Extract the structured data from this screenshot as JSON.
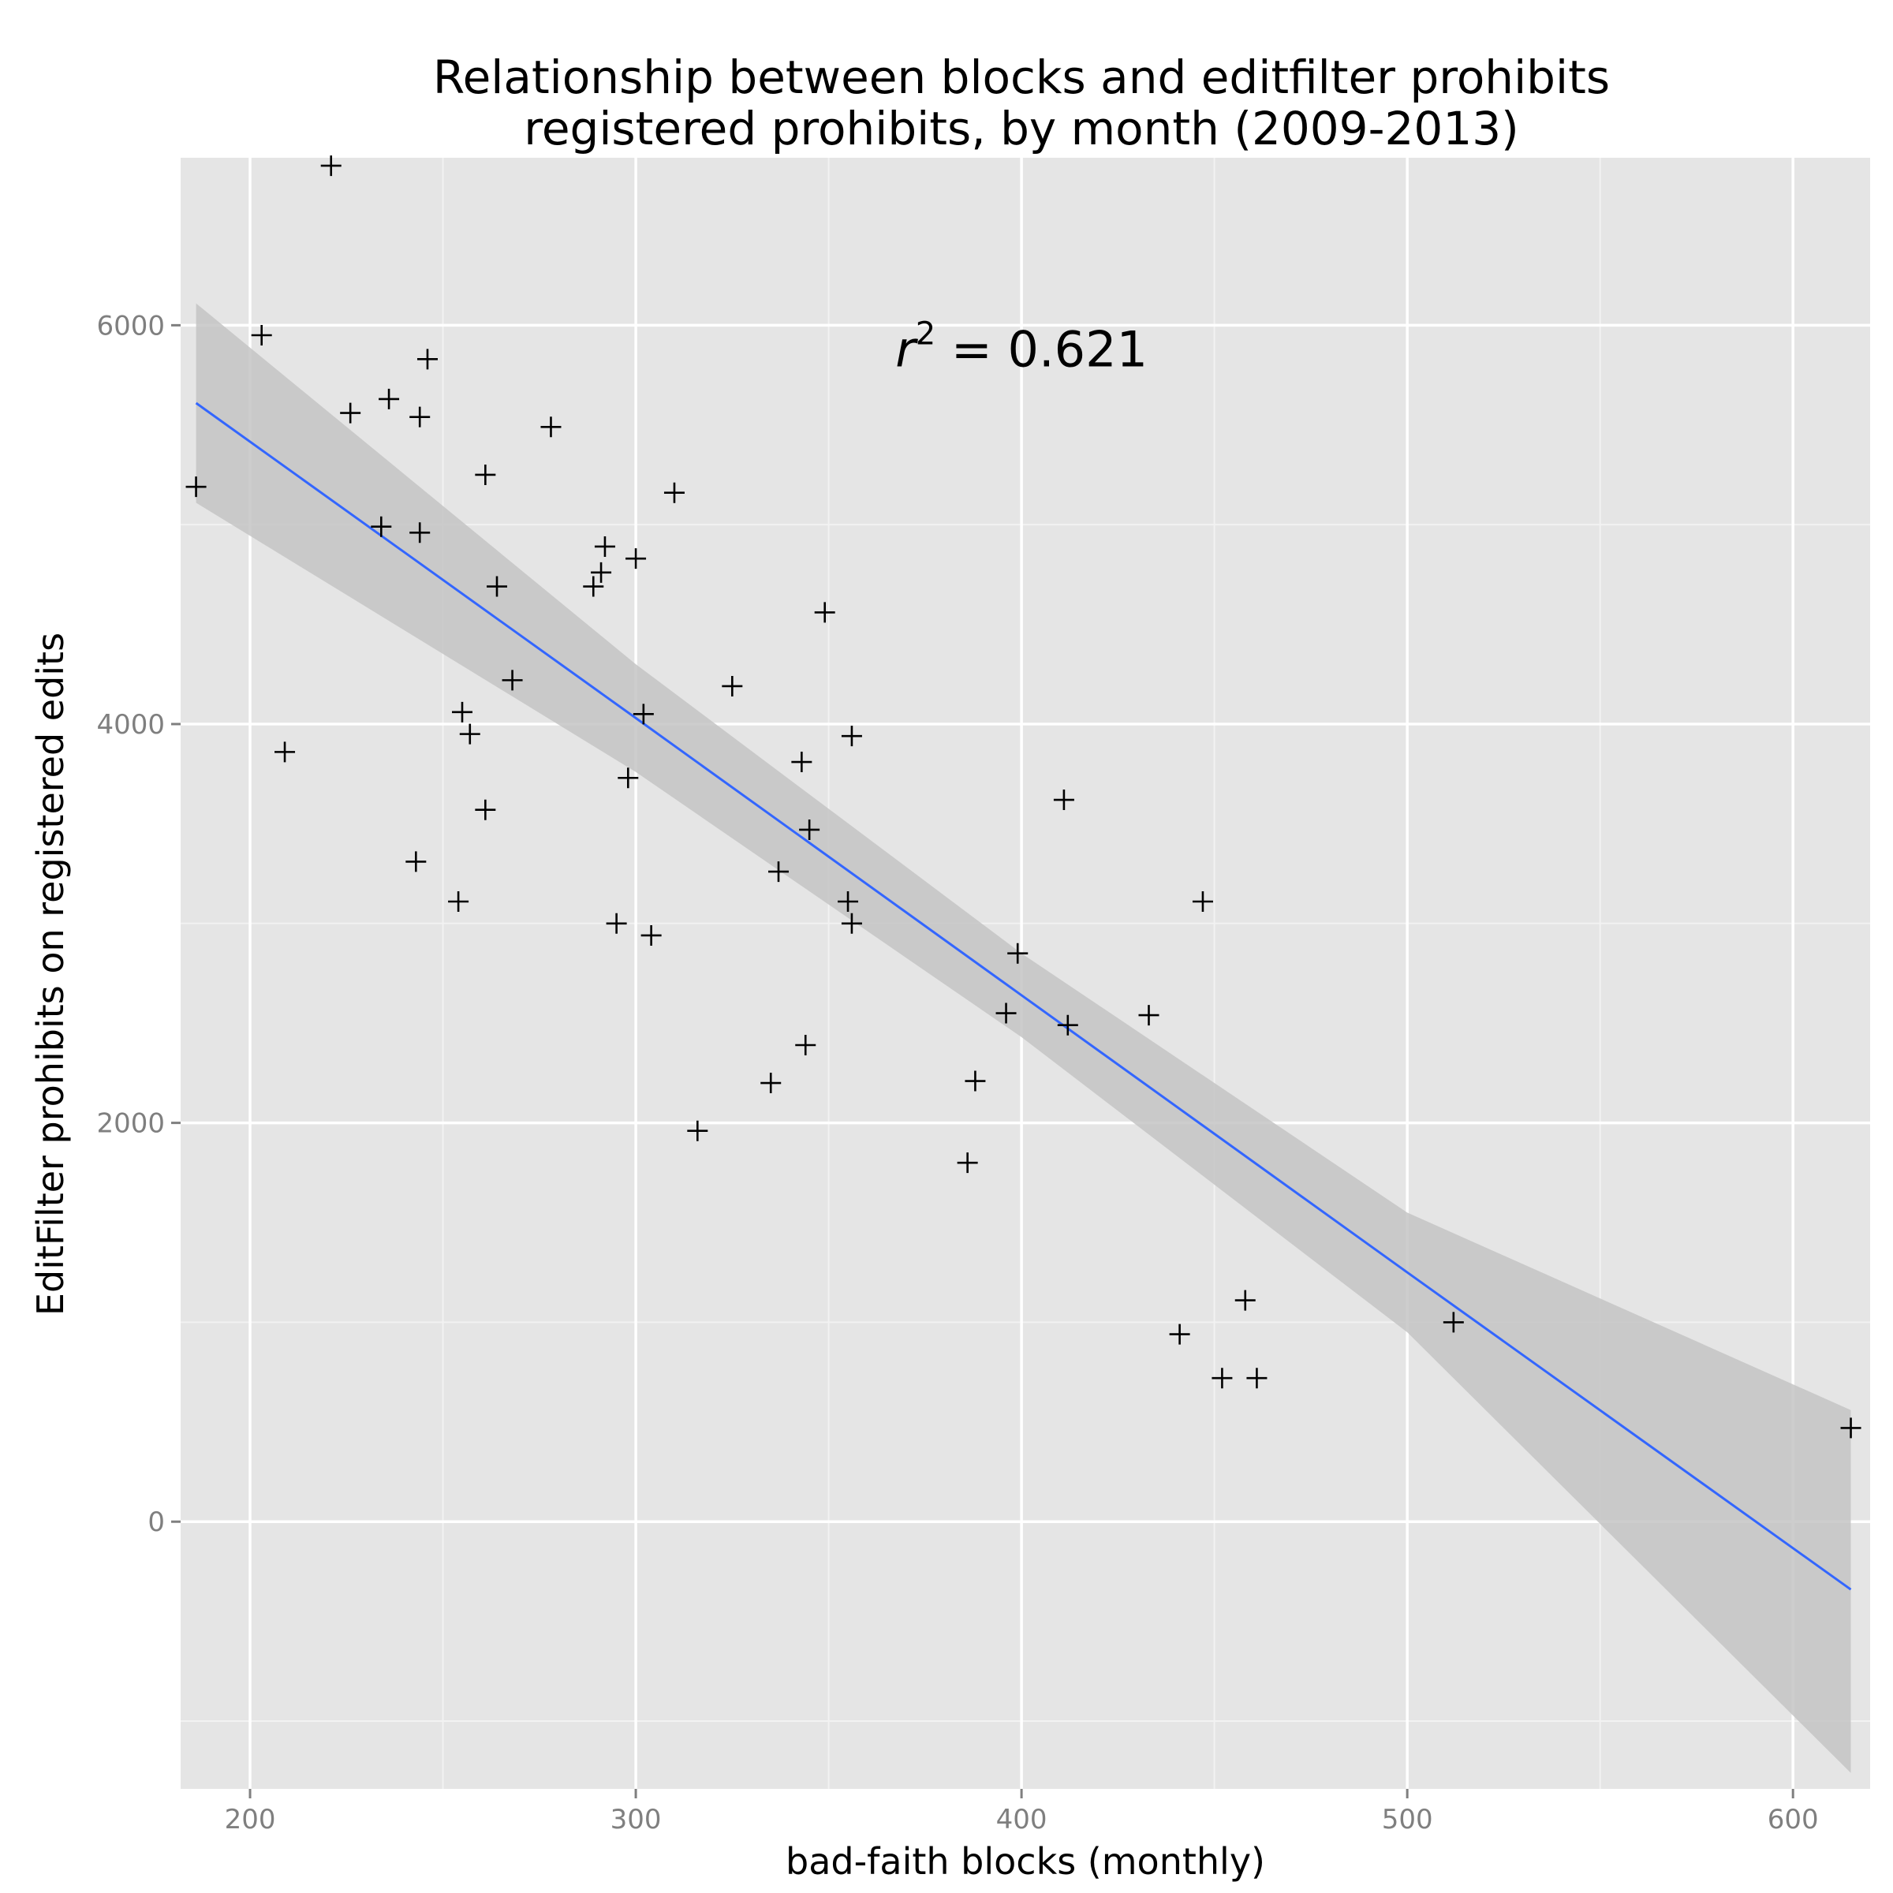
{
  "chart_data": {
    "type": "scatter",
    "title_lines": [
      "Relationship between blocks and editfilter prohibits",
      "registered prohibits, by month (2009-2013)"
    ],
    "xlabel": "bad-faith blocks (monthly)",
    "ylabel": "EditFilter prohibits on registered edits",
    "xlim": [
      182,
      620
    ],
    "ylim": [
      -1340,
      6840
    ],
    "x_ticks": [
      200,
      300,
      400,
      500,
      600
    ],
    "y_ticks": [
      0,
      2000,
      4000,
      6000
    ],
    "x_tick_labels": [
      "200",
      "300",
      "400",
      "500",
      "600"
    ],
    "y_tick_labels": [
      "0",
      "2000",
      "4000",
      "6000"
    ],
    "x_minor": [
      250,
      350,
      450,
      550
    ],
    "y_minor": [
      -1000,
      1000,
      3000,
      5000
    ],
    "grid": true,
    "annotation": {
      "prefix": "r",
      "superscript": "2",
      "suffix": " = 0.621",
      "x": 400,
      "y": 5880
    },
    "regression": {
      "x": [
        186,
        300,
        400,
        500,
        615
      ],
      "y": [
        5610,
        4030,
        2640,
        1250,
        -340
      ],
      "upper": [
        6110,
        4300,
        2850,
        1550,
        560
      ],
      "lower": [
        5110,
        3760,
        2430,
        950,
        -1260
      ]
    },
    "colors": {
      "panel": "#e5e5e5",
      "grid_major": "#ffffff",
      "grid_minor": "#f2f2f2",
      "band": "#c4c4c4",
      "line": "#3366ff",
      "point": "#000000"
    },
    "points": [
      [
        221,
        6800
      ],
      [
        203,
        5950
      ],
      [
        246,
        5830
      ],
      [
        236,
        5630
      ],
      [
        226,
        5560
      ],
      [
        244,
        5540
      ],
      [
        278,
        5490
      ],
      [
        186,
        5190
      ],
      [
        310,
        5160
      ],
      [
        261,
        5250
      ],
      [
        234,
        4990
      ],
      [
        244,
        4960
      ],
      [
        292,
        4890
      ],
      [
        300,
        4830
      ],
      [
        291,
        4760
      ],
      [
        289,
        4690
      ],
      [
        264,
        4690
      ],
      [
        349,
        4560
      ],
      [
        268,
        4220
      ],
      [
        325,
        4190
      ],
      [
        255,
        4060
      ],
      [
        302,
        4050
      ],
      [
        257,
        3950
      ],
      [
        356,
        3940
      ],
      [
        209,
        3860
      ],
      [
        343,
        3810
      ],
      [
        298,
        3730
      ],
      [
        261,
        3570
      ],
      [
        411,
        3620
      ],
      [
        345,
        3470
      ],
      [
        243,
        3310
      ],
      [
        337,
        3260
      ],
      [
        254,
        3110
      ],
      [
        355,
        3110
      ],
      [
        447,
        3110
      ],
      [
        295,
        3000
      ],
      [
        304,
        2940
      ],
      [
        356,
        3000
      ],
      [
        399,
        2850
      ],
      [
        396,
        2550
      ],
      [
        433,
        2540
      ],
      [
        412,
        2490
      ],
      [
        344,
        2390
      ],
      [
        388,
        2210
      ],
      [
        335,
        2200
      ],
      [
        316,
        1960
      ],
      [
        386,
        1800
      ],
      [
        458,
        1110
      ],
      [
        512,
        1000
      ],
      [
        441,
        940
      ],
      [
        452,
        720
      ],
      [
        461,
        720
      ],
      [
        615,
        470
      ]
    ]
  }
}
